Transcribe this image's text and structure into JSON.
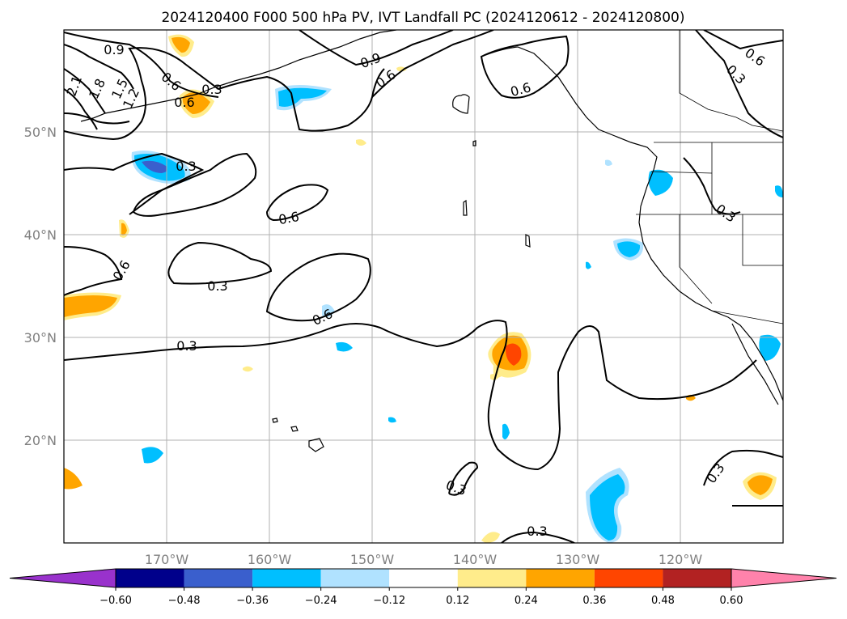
{
  "title": "2024120400 F000 500 hPa PV, IVT Landfall PC (2024120612 - 2024120800)",
  "lon_ticks": [
    "170°W",
    "160°W",
    "150°W",
    "140°W",
    "130°W",
    "120°W"
  ],
  "lat_ticks": [
    "50°N",
    "40°N",
    "30°N",
    "20°N"
  ],
  "colorbar": {
    "ticks": [
      "−0.60",
      "−0.48",
      "−0.36",
      "−0.24",
      "−0.12",
      "0.12",
      "0.24",
      "0.36",
      "0.48",
      "0.60"
    ],
    "colors": [
      "#9932CC",
      "#00008B",
      "#3A5FCD",
      "#00BFFF",
      "#B0E2FF",
      "#FFFFFF",
      "#FFEC8B",
      "#FFA500",
      "#FF4500",
      "#B22222",
      "#FF82AB"
    ]
  },
  "contour_labels": [
    "0.9",
    "0.6",
    "2.1",
    "1.8",
    "1.5",
    "1.2",
    "0.9",
    "0.6",
    "0.3",
    "0.6",
    "0.6",
    "0.6",
    "0.3",
    "0.3",
    "0.6",
    "0.3",
    "0.6",
    "0.3",
    "0.3",
    "0.3",
    "0.3",
    "0.3",
    "0.6"
  ],
  "chart_data": {
    "type": "map",
    "projection": "PlateCarree",
    "extent": {
      "lon": [
        -180,
        -110
      ],
      "lat": [
        10,
        60
      ]
    },
    "fields": [
      "500 hPa PV (contours)",
      "IVT Landfall PC (shading)"
    ],
    "contour_levels": [
      0.3,
      0.6,
      0.9,
      1.2,
      1.5,
      1.8,
      2.1
    ],
    "shading_levels": [
      -0.6,
      -0.48,
      -0.36,
      -0.24,
      -0.12,
      0.12,
      0.24,
      0.36,
      0.48,
      0.6
    ],
    "grid": true
  }
}
